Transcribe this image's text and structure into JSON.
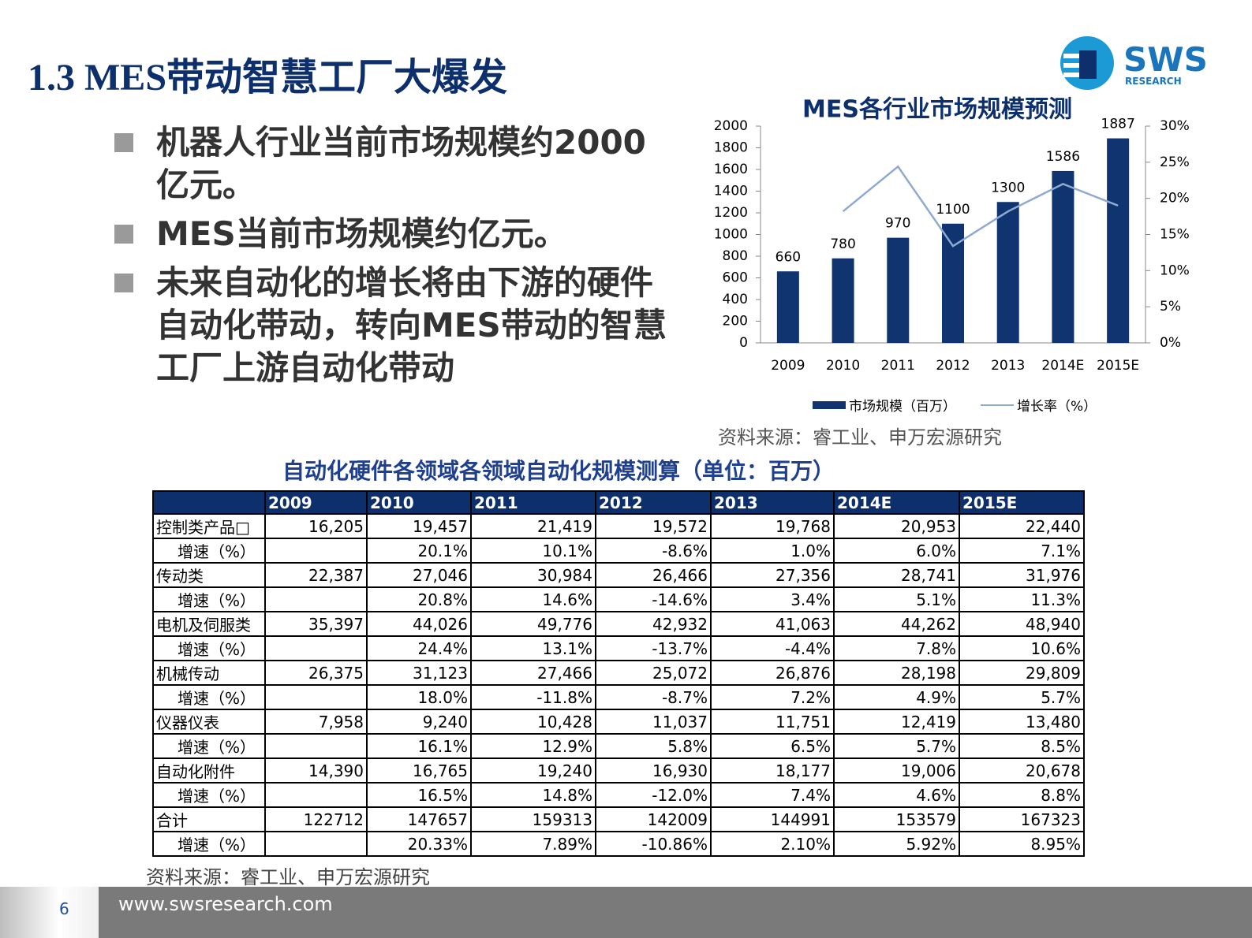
{
  "header": {
    "title": "1.3 MES带动智慧工厂大爆发"
  },
  "logo": {
    "name": "SWS",
    "sub": "RESEARCH"
  },
  "bullets": [
    "机器人行业当前市场规模约2000亿元。",
    "MES当前市场规模约亿元。",
    "未来自动化的增长将由下游的硬件自动化带动，转向MES带动的智慧工厂上游自动化带动"
  ],
  "chart_data": {
    "type": "bar",
    "title": "MES各行业市场规模预测",
    "categories": [
      "2009",
      "2010",
      "2011",
      "2012",
      "2013",
      "2014E",
      "2015E"
    ],
    "series": [
      {
        "name": "市场规模（百万）",
        "color": "#0f3470",
        "values": [
          660,
          780,
          970,
          1100,
          1300,
          1586,
          1887
        ]
      },
      {
        "name": "增长率（%）",
        "color": "#8faad1",
        "type": "line",
        "axis": "y2",
        "values": [
          null,
          18.2,
          24.4,
          13.4,
          18.2,
          22.0,
          19.0
        ]
      }
    ],
    "ylim": [
      0,
      2000
    ],
    "yticks": [
      0,
      200,
      400,
      600,
      800,
      1000,
      1200,
      1400,
      1600,
      1800,
      2000
    ],
    "y2lim": [
      0,
      30
    ],
    "y2ticks": [
      {
        "value": 0,
        "label": "0%"
      },
      {
        "value": 5,
        "label": "5%"
      },
      {
        "value": 10,
        "label": "10%"
      },
      {
        "value": 15,
        "label": "15%"
      },
      {
        "value": 20,
        "label": "20%"
      },
      {
        "value": 25,
        "label": "25%"
      },
      {
        "value": 30,
        "label": "30%"
      }
    ],
    "grid": false,
    "legend": "bottom",
    "source": "资料来源：睿工业、申万宏源研究"
  },
  "table": {
    "title": "自动化硬件各领域各领域自动化规模测算（单位：百万）",
    "columns": [
      "2009",
      "2010",
      "2011",
      "2012",
      "2013",
      "2014E",
      "2015E"
    ],
    "rows": [
      [
        "控制类产品□",
        "16,205",
        "19,457",
        "21,419",
        "19,572",
        "19,768",
        "20,953",
        "22,440"
      ],
      [
        "增速（%）",
        null,
        "20.1%",
        "10.1%",
        "-8.6%",
        "1.0%",
        "6.0%",
        "7.1%"
      ],
      [
        "传动类",
        "22,387",
        "27,046",
        "30,984",
        "26,466",
        "27,356",
        "28,741",
        "31,976"
      ],
      [
        "增速（%）",
        null,
        "20.8%",
        "14.6%",
        "-14.6%",
        "3.4%",
        "5.1%",
        "11.3%"
      ],
      [
        "电机及伺服类",
        "35,397",
        "44,026",
        "49,776",
        "42,932",
        "41,063",
        "44,262",
        "48,940"
      ],
      [
        "增速（%）",
        null,
        "24.4%",
        "13.1%",
        "-13.7%",
        "-4.4%",
        "7.8%",
        "10.6%"
      ],
      [
        "机械传动",
        "26,375",
        "31,123",
        "27,466",
        "25,072",
        "26,876",
        "28,198",
        "29,809"
      ],
      [
        "增速（%）",
        null,
        "18.0%",
        "-11.8%",
        "-8.7%",
        "7.2%",
        "4.9%",
        "5.7%"
      ],
      [
        "仪器仪表",
        "7,958",
        "9,240",
        "10,428",
        "11,037",
        "11,751",
        "12,419",
        "13,480"
      ],
      [
        "增速（%）",
        null,
        "16.1%",
        "12.9%",
        "5.8%",
        "6.5%",
        "5.7%",
        "8.5%"
      ],
      [
        "自动化附件",
        "14,390",
        "16,765",
        "19,240",
        "16,930",
        "18,177",
        "19,006",
        "20,678"
      ],
      [
        "增速（%）",
        null,
        "16.5%",
        "14.8%",
        "-12.0%",
        "7.4%",
        "4.6%",
        "8.8%"
      ],
      [
        "合计",
        "122712",
        "147657",
        "159313",
        "142009",
        "144991",
        "153579",
        "167323"
      ],
      [
        "增速（%）",
        null,
        "20.33%",
        "7.89%",
        "-10.86%",
        "2.10%",
        "5.92%",
        "8.95%"
      ]
    ],
    "source": "资料来源：睿工业、申万宏源研究"
  },
  "footer": {
    "page": "6",
    "url": "www.swsresearch.com"
  }
}
